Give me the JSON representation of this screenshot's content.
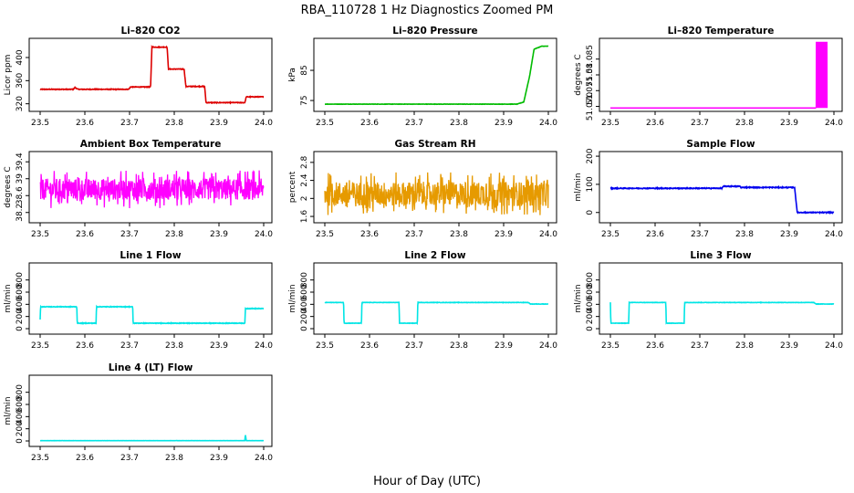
{
  "figure": {
    "title": "RBA_110728  1 Hz Diagnostics Zoomed PM",
    "xlabel": "Hour of Day (UTC)"
  },
  "chart_data": [
    {
      "type": "line",
      "title": "Li–820 CO2",
      "ylabel": "Licor ppm",
      "color": "#dd0000",
      "xlim": [
        23.5,
        24.0
      ],
      "ylim": [
        310,
        430
      ],
      "xticks": [
        "23.5",
        "23.6",
        "23.7",
        "23.8",
        "23.9",
        "24.0"
      ],
      "yticks": [
        320,
        360,
        400
      ],
      "noise": 1.2,
      "segments": [
        [
          23.5,
          345
        ],
        [
          23.574,
          345
        ],
        [
          23.578,
          348
        ],
        [
          23.585,
          345
        ],
        [
          23.698,
          345
        ],
        [
          23.702,
          349
        ],
        [
          23.747,
          349
        ],
        [
          23.75,
          418
        ],
        [
          23.784,
          418
        ],
        [
          23.787,
          380
        ],
        [
          23.822,
          380
        ],
        [
          23.826,
          350
        ],
        [
          23.868,
          350
        ],
        [
          23.871,
          322
        ],
        [
          23.958,
          322
        ],
        [
          23.961,
          332
        ],
        [
          24.0,
          332
        ]
      ]
    },
    {
      "type": "line",
      "title": "Li–820 Pressure",
      "ylabel": "kPa",
      "color": "#00bb00",
      "xlim": [
        23.5,
        24.0
      ],
      "ylim": [
        72,
        95
      ],
      "xticks": [
        "23.5",
        "23.6",
        "23.7",
        "23.8",
        "23.9",
        "24.0"
      ],
      "yticks": [
        75,
        85
      ],
      "noise": 0.1,
      "segments": [
        [
          23.5,
          73.8
        ],
        [
          23.93,
          73.8
        ],
        [
          23.945,
          74.5
        ],
        [
          23.958,
          83
        ],
        [
          23.968,
          92
        ],
        [
          23.985,
          93
        ],
        [
          24.0,
          93
        ]
      ]
    },
    {
      "type": "line",
      "title": "Li–820 Temperature",
      "ylabel": "degrees C",
      "color": "#ff00ff",
      "xlim": [
        23.5,
        24.0
      ],
      "ylim": [
        51.069,
        51.091
      ],
      "xticks": [
        "23.5",
        "23.6",
        "23.7",
        "23.8",
        "23.9",
        "24.0"
      ],
      "yticks": [
        51.07,
        51.075,
        51.08,
        51.085
      ],
      "ytick_labels": [
        "51.070",
        "51.075",
        "51.08",
        "51.085"
      ],
      "noise": 0,
      "segments": [
        [
          23.5,
          51.0695
        ],
        [
          23.96,
          51.0695
        ]
      ],
      "band": {
        "x0": 23.96,
        "x1": 23.985,
        "y0": 51.0695,
        "y1": 51.0905
      }
    },
    {
      "type": "line",
      "title": "Ambient Box Temperature",
      "ylabel": "degrees C",
      "color": "#ff00ff",
      "xlim": [
        23.5,
        24.0
      ],
      "ylim": [
        38.0,
        39.6
      ],
      "xticks": [
        "23.5",
        "23.6",
        "23.7",
        "23.8",
        "23.9",
        "24.0"
      ],
      "yticks": [
        38.2,
        38.6,
        39.0,
        39.4
      ],
      "noise": 0.28,
      "spiky": true,
      "segments": [
        [
          23.5,
          38.75
        ],
        [
          24.0,
          38.75
        ]
      ]
    },
    {
      "type": "line",
      "title": "Gas Stream RH",
      "ylabel": "percent",
      "color": "#e69a00",
      "xlim": [
        23.5,
        24.0
      ],
      "ylim": [
        1.5,
        3.0
      ],
      "xticks": [
        "23.5",
        "23.6",
        "23.7",
        "23.8",
        "23.9",
        "24.0"
      ],
      "yticks": [
        1.6,
        2.0,
        2.4,
        2.8
      ],
      "noise": 0.3,
      "spiky": true,
      "segments": [
        [
          23.5,
          2.1
        ],
        [
          24.0,
          2.1
        ]
      ]
    },
    {
      "type": "line",
      "title": "Sample Flow",
      "ylabel": "ml/min",
      "color": "#0000ee",
      "xlim": [
        23.5,
        24.0
      ],
      "ylim": [
        -30,
        210
      ],
      "xticks": [
        "23.5",
        "23.6",
        "23.7",
        "23.8",
        "23.9",
        "24.0"
      ],
      "yticks": [
        0,
        100,
        200
      ],
      "noise": 3,
      "segments": [
        [
          23.5,
          86
        ],
        [
          23.75,
          86
        ],
        [
          23.752,
          93
        ],
        [
          23.79,
          93
        ],
        [
          23.792,
          89
        ],
        [
          23.912,
          89
        ],
        [
          23.918,
          0
        ],
        [
          24.0,
          0
        ]
      ]
    },
    {
      "type": "line",
      "title": "Line 1 Flow",
      "ylabel": "ml/min",
      "color": "#00e5e5",
      "xlim": [
        23.5,
        24.0
      ],
      "ylim": [
        -60,
        1050
      ],
      "xticks": [
        "23.5",
        "23.6",
        "23.7",
        "23.8",
        "23.9",
        "24.0"
      ],
      "yticks": [
        0,
        200,
        400,
        600,
        800
      ],
      "noise": 10,
      "segments": [
        [
          23.5,
          150
        ],
        [
          23.501,
          360
        ],
        [
          23.582,
          360
        ],
        [
          23.583,
          90
        ],
        [
          23.625,
          90
        ],
        [
          23.626,
          360
        ],
        [
          23.707,
          360
        ],
        [
          23.708,
          90
        ],
        [
          23.958,
          90
        ],
        [
          23.959,
          330
        ],
        [
          24.0,
          330
        ]
      ]
    },
    {
      "type": "line",
      "title": "Line 2 Flow",
      "ylabel": "ml/min",
      "color": "#00e5e5",
      "xlim": [
        23.5,
        24.0
      ],
      "ylim": [
        -60,
        1050
      ],
      "xticks": [
        "23.5",
        "23.6",
        "23.7",
        "23.8",
        "23.9",
        "24.0"
      ],
      "yticks": [
        0,
        200,
        400,
        600,
        800
      ],
      "noise": 6,
      "segments": [
        [
          23.5,
          430
        ],
        [
          23.542,
          430
        ],
        [
          23.543,
          90
        ],
        [
          23.582,
          90
        ],
        [
          23.583,
          430
        ],
        [
          23.666,
          430
        ],
        [
          23.667,
          90
        ],
        [
          23.707,
          90
        ],
        [
          23.708,
          430
        ],
        [
          23.955,
          430
        ],
        [
          23.96,
          405
        ],
        [
          24.0,
          405
        ]
      ]
    },
    {
      "type": "line",
      "title": "Line 3 Flow",
      "ylabel": "ml/min",
      "color": "#00e5e5",
      "xlim": [
        23.5,
        24.0
      ],
      "ylim": [
        -60,
        1050
      ],
      "xticks": [
        "23.5",
        "23.6",
        "23.7",
        "23.8",
        "23.9",
        "24.0"
      ],
      "yticks": [
        0,
        200,
        400,
        600,
        800
      ],
      "noise": 6,
      "segments": [
        [
          23.5,
          430
        ],
        [
          23.501,
          90
        ],
        [
          23.541,
          90
        ],
        [
          23.542,
          430
        ],
        [
          23.624,
          430
        ],
        [
          23.625,
          90
        ],
        [
          23.665,
          90
        ],
        [
          23.666,
          430
        ],
        [
          23.955,
          430
        ],
        [
          23.96,
          405
        ],
        [
          24.0,
          405
        ]
      ]
    },
    {
      "type": "line",
      "title": "Line 4 (LT) Flow",
      "ylabel": "ml/min",
      "color": "#00e5e5",
      "xlim": [
        23.5,
        24.0
      ],
      "ylim": [
        -60,
        1050
      ],
      "xticks": [
        "23.5",
        "23.6",
        "23.7",
        "23.8",
        "23.9",
        "24.0"
      ],
      "yticks": [
        0,
        200,
        400,
        600,
        800
      ],
      "noise": 2,
      "segments": [
        [
          23.5,
          5
        ],
        [
          23.958,
          5
        ],
        [
          23.959,
          110
        ],
        [
          23.961,
          5
        ],
        [
          24.0,
          5
        ]
      ]
    }
  ]
}
